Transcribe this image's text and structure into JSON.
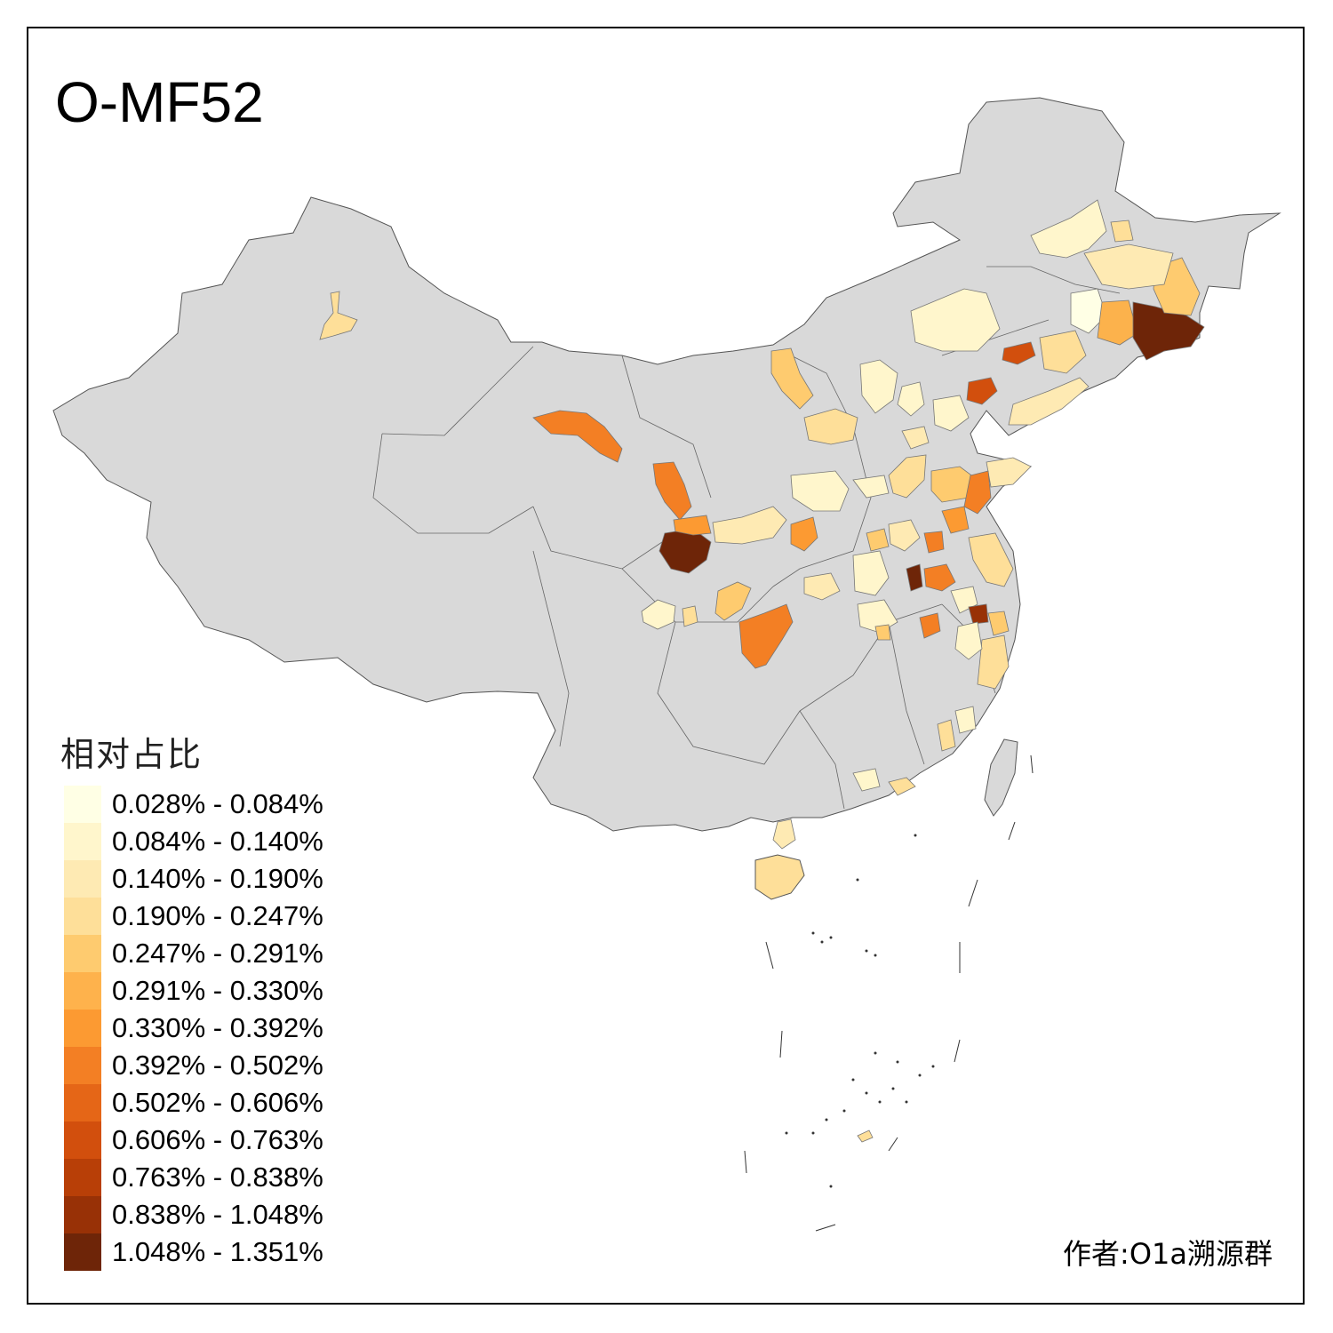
{
  "title": "O-MF52",
  "legend": {
    "title": "相对占比",
    "items": [
      {
        "label": "0.028% - 0.084%",
        "color": "#ffffe5"
      },
      {
        "label": "0.084% - 0.140%",
        "color": "#fff6cc"
      },
      {
        "label": "0.140% - 0.190%",
        "color": "#feeab3"
      },
      {
        "label": "0.190% - 0.247%",
        "color": "#fedf99"
      },
      {
        "label": "0.247% - 0.291%",
        "color": "#fecb6f"
      },
      {
        "label": "0.291% - 0.330%",
        "color": "#feb24c"
      },
      {
        "label": "0.330% - 0.392%",
        "color": "#fc9a32"
      },
      {
        "label": "0.392% - 0.502%",
        "color": "#f37f24"
      },
      {
        "label": "0.502% - 0.606%",
        "color": "#e56617"
      },
      {
        "label": "0.606% - 0.763%",
        "color": "#d24f0d"
      },
      {
        "label": "0.763% - 0.838%",
        "color": "#b83f07"
      },
      {
        "label": "0.838% - 1.048%",
        "color": "#983106"
      },
      {
        "label": "1.048% - 1.351%",
        "color": "#6e2508"
      }
    ]
  },
  "author": "作者:O1a溯源群",
  "map": {
    "base_color": "#d9d9d9",
    "no_data_color": "#d9d9d9"
  }
}
